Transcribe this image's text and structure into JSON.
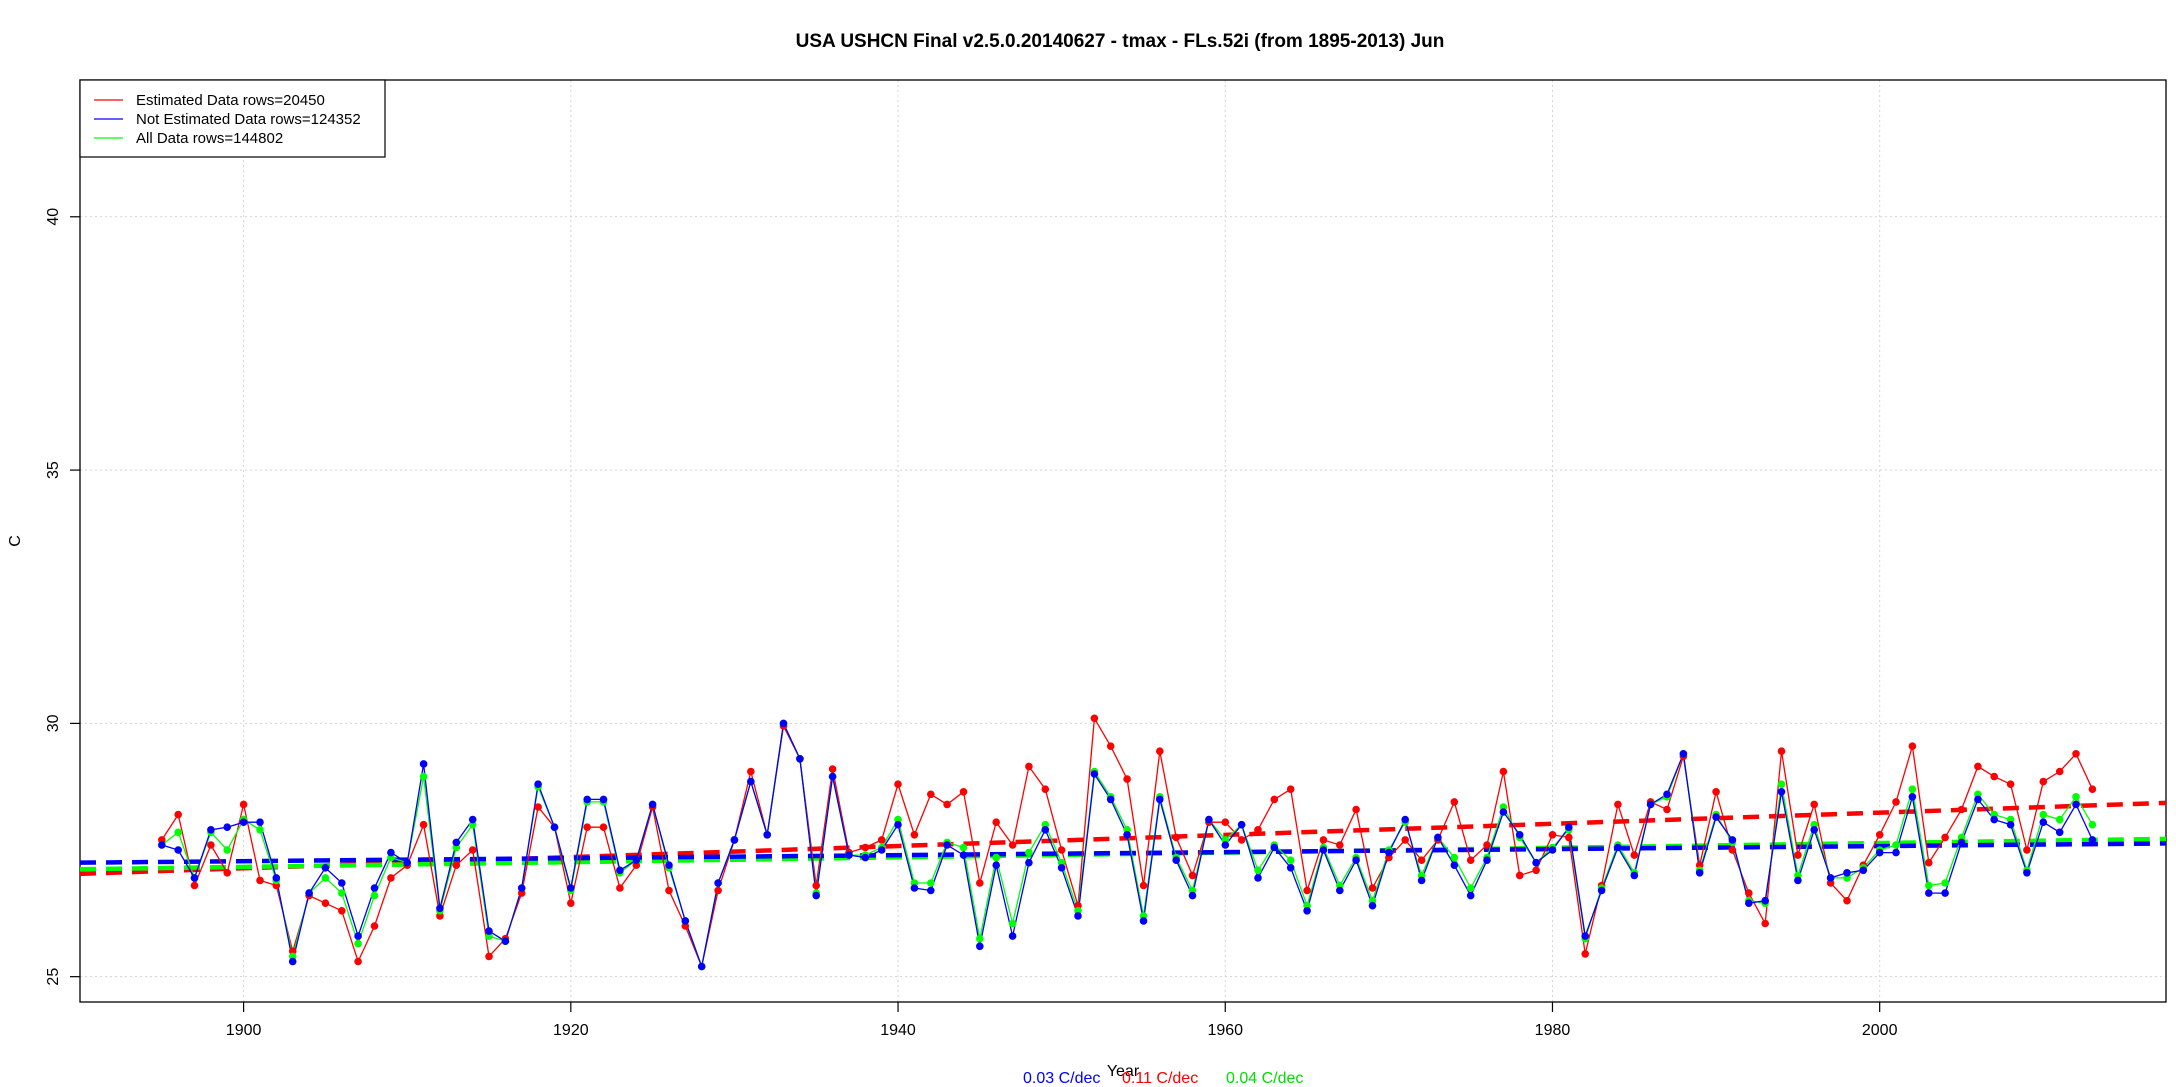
{
  "chart_data": {
    "type": "line",
    "title": "USA USHCN Final v2.5.0.20140627 - tmax - FLs.52i (from 1895-2013) Jun",
    "xlabel": "Year",
    "ylabel": "C",
    "xlim": [
      1890,
      2017.5
    ],
    "ylim": [
      24.5,
      42.7
    ],
    "x_ticks": [
      1900,
      1920,
      1940,
      1960,
      1980,
      2000
    ],
    "y_ticks": [
      25,
      30,
      35,
      40
    ],
    "grid": true,
    "legend_position": "top-left",
    "legend": [
      {
        "label": "Estimated Data rows=20450",
        "color": "#ff0000"
      },
      {
        "label": "Not Estimated Data rows=124352",
        "color": "#0000ff"
      },
      {
        "label": "All Data rows=144802",
        "color": "#00ff00"
      }
    ],
    "rates": [
      {
        "label": "0.03 C/dec",
        "color": "#0000ff"
      },
      {
        "label": "0.11 C/dec",
        "color": "#ff0000"
      },
      {
        "label": "0.04 C/dec",
        "color": "#00ff00"
      }
    ],
    "x": [
      1895,
      1896,
      1897,
      1898,
      1899,
      1900,
      1901,
      1902,
      1903,
      1904,
      1905,
      1906,
      1907,
      1908,
      1909,
      1910,
      1911,
      1912,
      1913,
      1914,
      1915,
      1916,
      1917,
      1918,
      1919,
      1920,
      1921,
      1922,
      1923,
      1924,
      1925,
      1926,
      1927,
      1928,
      1929,
      1930,
      1931,
      1932,
      1933,
      1934,
      1935,
      1936,
      1937,
      1938,
      1939,
      1940,
      1941,
      1942,
      1943,
      1944,
      1945,
      1946,
      1947,
      1948,
      1949,
      1950,
      1951,
      1952,
      1953,
      1954,
      1955,
      1956,
      1957,
      1958,
      1959,
      1960,
      1961,
      1962,
      1963,
      1964,
      1965,
      1966,
      1967,
      1968,
      1969,
      1970,
      1971,
      1972,
      1973,
      1974,
      1975,
      1976,
      1977,
      1978,
      1979,
      1980,
      1981,
      1982,
      1983,
      1984,
      1985,
      1986,
      1987,
      1988,
      1989,
      1990,
      1991,
      1992,
      1993,
      1994,
      1995,
      1996,
      1997,
      1998,
      1999,
      2000,
      2001,
      2002,
      2003,
      2004,
      2005,
      2006,
      2007,
      2008,
      2009,
      2010,
      2011,
      2012,
      2013
    ],
    "series": [
      {
        "name": "Estimated Data rows=20450",
        "color": "#ff0000",
        "values": [
          27.7,
          28.2,
          26.8,
          27.6,
          27.05,
          28.4,
          26.9,
          26.8,
          25.5,
          26.6,
          26.45,
          26.3,
          25.3,
          26.0,
          26.95,
          27.2,
          28.0,
          26.2,
          27.2,
          27.5,
          25.4,
          25.75,
          26.65,
          28.35,
          27.95,
          26.45,
          27.95,
          27.95,
          26.75,
          27.2,
          28.35,
          26.7,
          26.0,
          25.2,
          26.7,
          27.7,
          29.05,
          27.8,
          29.95,
          29.3,
          26.8,
          29.1,
          27.45,
          27.55,
          27.7,
          28.8,
          27.8,
          28.6,
          28.4,
          28.65,
          26.85,
          28.05,
          27.6,
          29.15,
          28.7,
          27.5,
          26.4,
          30.1,
          29.55,
          28.9,
          26.8,
          29.45,
          27.75,
          27.0,
          28.05,
          28.05,
          27.7,
          27.9,
          28.5,
          28.7,
          26.7,
          27.7,
          27.6,
          28.3,
          26.75,
          27.35,
          27.7,
          27.3,
          27.7,
          28.45,
          27.3,
          27.6,
          29.05,
          27.0,
          27.1,
          27.8,
          27.75,
          25.45,
          26.8,
          28.4,
          27.4,
          28.45,
          28.3,
          29.35,
          27.2,
          28.65,
          27.5,
          26.65,
          26.05,
          29.45,
          27.4,
          28.4,
          26.85,
          26.5,
          27.2,
          27.8,
          28.45,
          29.55,
          27.25,
          27.75,
          28.3,
          29.15,
          28.95,
          28.8,
          27.5,
          28.85,
          29.05,
          29.4,
          28.7
        ]
      },
      {
        "name": "Not Estimated Data rows=124352",
        "color": "#0000ff",
        "values": [
          27.6,
          27.5,
          26.95,
          27.9,
          27.95,
          28.05,
          28.05,
          26.95,
          25.3,
          26.65,
          27.15,
          26.85,
          25.8,
          26.75,
          27.45,
          27.25,
          29.2,
          26.35,
          27.65,
          28.1,
          25.9,
          25.7,
          26.75,
          28.8,
          27.95,
          26.75,
          28.5,
          28.5,
          27.1,
          27.3,
          28.4,
          27.2,
          26.1,
          25.2,
          26.85,
          27.7,
          28.85,
          27.8,
          30.0,
          29.3,
          26.6,
          28.95,
          27.4,
          27.35,
          27.5,
          28.0,
          26.75,
          26.7,
          27.6,
          27.4,
          25.6,
          27.2,
          25.8,
          27.25,
          27.9,
          27.15,
          26.2,
          29.0,
          28.5,
          27.8,
          26.1,
          28.5,
          27.3,
          26.6,
          28.1,
          27.6,
          28.0,
          26.95,
          27.55,
          27.15,
          26.3,
          27.5,
          26.7,
          27.3,
          26.4,
          27.45,
          28.1,
          26.9,
          27.75,
          27.2,
          26.6,
          27.3,
          28.25,
          27.8,
          27.25,
          27.5,
          27.95,
          25.8,
          26.7,
          27.55,
          27.0,
          28.4,
          28.6,
          29.4,
          27.05,
          28.15,
          27.7,
          26.45,
          26.5,
          28.65,
          26.9,
          27.9,
          26.95,
          27.05,
          27.1,
          27.45,
          27.45,
          28.55,
          26.65,
          26.65,
          27.65,
          28.5,
          28.1,
          28.0,
          27.05,
          28.05,
          27.85,
          28.4,
          27.7
        ]
      },
      {
        "name": "All Data rows=144802",
        "color": "#00ff00",
        "values": [
          27.6,
          27.85,
          26.95,
          27.85,
          27.5,
          28.1,
          27.9,
          26.9,
          25.4,
          26.65,
          26.95,
          26.65,
          25.65,
          26.6,
          27.35,
          27.25,
          28.95,
          26.3,
          27.55,
          28.0,
          25.8,
          25.7,
          26.75,
          28.75,
          27.95,
          26.7,
          28.45,
          28.45,
          27.05,
          27.3,
          28.4,
          27.15,
          26.1,
          25.2,
          26.85,
          27.7,
          28.85,
          27.8,
          30.0,
          29.3,
          26.65,
          28.95,
          27.4,
          27.4,
          27.55,
          28.1,
          26.85,
          26.85,
          27.65,
          27.55,
          25.75,
          27.35,
          26.05,
          27.45,
          28.0,
          27.25,
          26.3,
          29.05,
          28.55,
          27.9,
          26.2,
          28.55,
          27.35,
          26.7,
          28.1,
          27.7,
          28.0,
          27.1,
          27.6,
          27.3,
          26.4,
          27.55,
          26.8,
          27.35,
          26.5,
          27.5,
          28.05,
          27.0,
          27.75,
          27.35,
          26.75,
          27.35,
          28.35,
          27.75,
          27.25,
          27.55,
          27.9,
          25.75,
          26.75,
          27.6,
          27.05,
          28.4,
          28.55,
          29.4,
          27.1,
          28.2,
          27.65,
          26.5,
          26.45,
          28.8,
          27.0,
          28.0,
          26.95,
          26.95,
          27.15,
          27.5,
          27.6,
          28.7,
          26.8,
          26.85,
          27.75,
          28.6,
          28.2,
          28.1,
          27.1,
          28.2,
          28.1,
          28.55,
          28.0
        ]
      }
    ],
    "trend_lines": [
      {
        "name": "Estimated Data rows=20450",
        "color": "#ff0000",
        "x": [
          1890,
          2017.5
        ],
        "y": [
          27.03,
          28.43
        ]
      },
      {
        "name": "All Data rows=144802",
        "color": "#00ff00",
        "x": [
          1890,
          2017.5
        ],
        "y": [
          27.12,
          27.72
        ]
      },
      {
        "name": "Not Estimated Data rows=124352",
        "color": "#0000ff",
        "x": [
          1890,
          2017.5
        ],
        "y": [
          27.25,
          27.63
        ]
      }
    ]
  }
}
